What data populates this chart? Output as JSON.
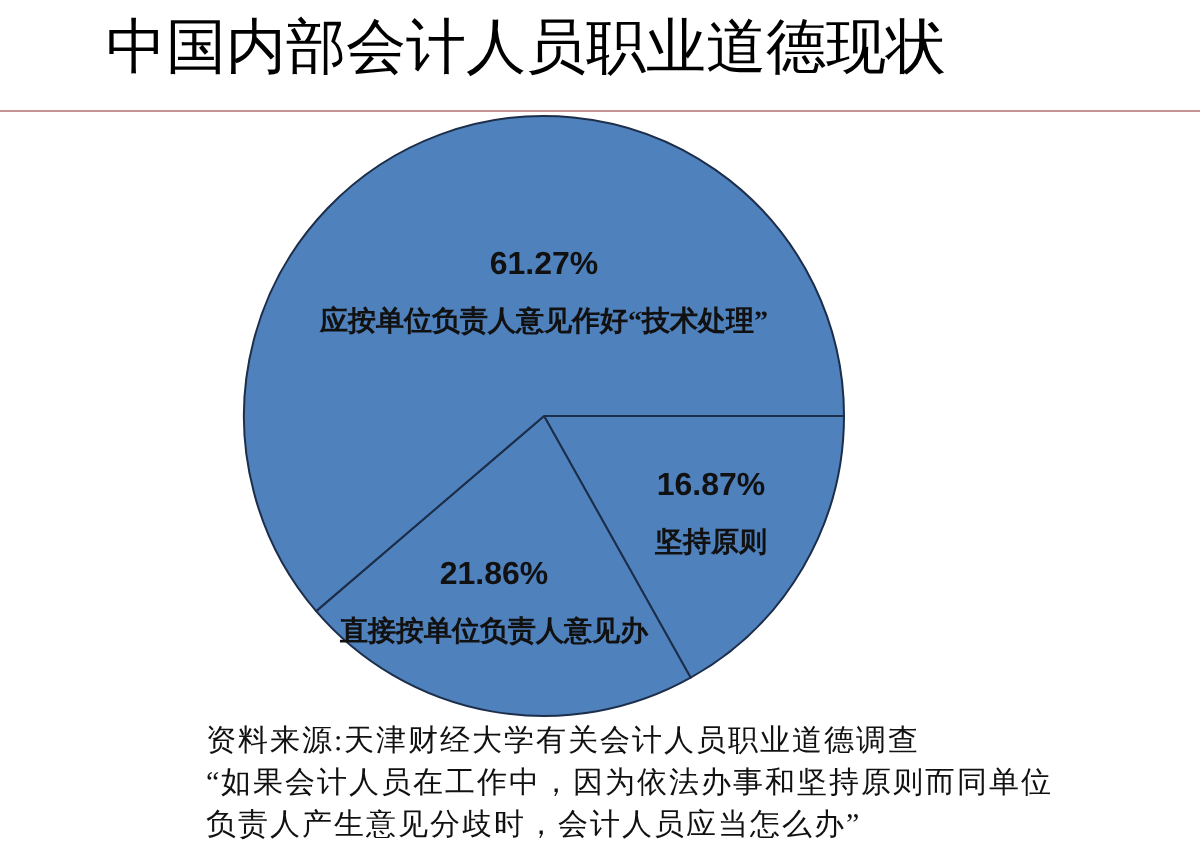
{
  "chart_data": {
    "type": "pie",
    "title": "中国内部会计人员职业道德现状",
    "categories": [
      "坚持原则",
      "直接按单位负责人意见办",
      "应按单位负责人意见作好“技术处理”"
    ],
    "values": [
      16.87,
      21.86,
      61.27
    ],
    "colors": [
      "#4f81bd",
      "#4f81bd",
      "#4f81bd"
    ],
    "value_labels": [
      "16.87%",
      "21.86%",
      "61.27%"
    ],
    "annotations": [
      "资料来源:天津财经大学有关会计人员职业道德调查",
      "“如果会计人员在工作中，因为依法办事和坚持原则而同单位负责人产生意见分歧时，会计人员应当怎么办”"
    ]
  }
}
